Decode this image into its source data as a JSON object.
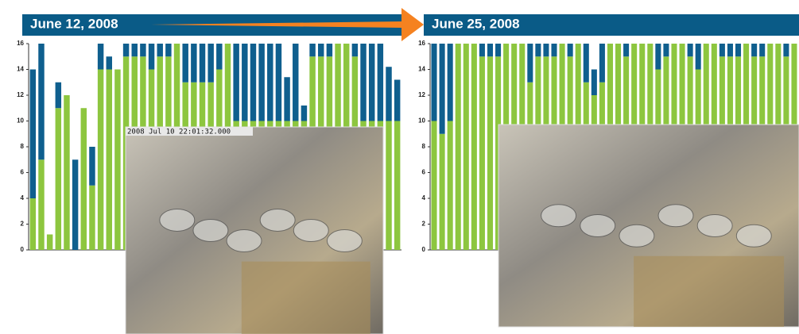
{
  "chart_data": [
    {
      "type": "stacked-bar",
      "title": "June 12, 2008",
      "annotation": "2008 Jul 10  22:01:32.000",
      "ylim": [
        0,
        16
      ],
      "yticks": [
        0,
        2,
        4,
        6,
        8,
        10,
        12,
        14,
        16
      ],
      "series": [
        {
          "color": "#8dc63f",
          "values": [
            4,
            7,
            1.2,
            11,
            12,
            0,
            11,
            5,
            14,
            14,
            14,
            15,
            15,
            15,
            14,
            15,
            15,
            16,
            13,
            13,
            13,
            13,
            14,
            16,
            10,
            10,
            10,
            10,
            10,
            10,
            10,
            10,
            10,
            15,
            15,
            15,
            16,
            16,
            15,
            10,
            10,
            10,
            10,
            10
          ]
        },
        {
          "color": "#0f5f8e",
          "values": [
            10,
            9,
            0,
            2,
            0,
            7,
            0,
            3,
            2,
            1,
            0,
            1,
            1,
            1,
            2,
            1,
            1,
            0,
            3,
            3,
            3,
            3,
            2,
            0,
            6,
            6,
            6,
            6,
            6,
            6,
            3.4,
            6,
            1.2,
            1,
            1,
            1,
            0,
            0,
            1,
            6,
            6,
            6,
            4.2,
            3.2
          ]
        }
      ]
    },
    {
      "type": "stacked-bar",
      "title": "June 25, 2008",
      "ylim": [
        0,
        16
      ],
      "yticks": [
        0,
        2,
        4,
        6,
        8,
        10,
        12,
        14,
        16
      ],
      "series": [
        {
          "color": "#8dc63f",
          "values": [
            10,
            9,
            10,
            16,
            16,
            16,
            15,
            15,
            15,
            16,
            16,
            16,
            13,
            15,
            15,
            15,
            16,
            15,
            16,
            13,
            12,
            13,
            16,
            16,
            15,
            16,
            16,
            16,
            14,
            15,
            16,
            16,
            15,
            14,
            16,
            16,
            15,
            15,
            15,
            16,
            15,
            15,
            16,
            16,
            15,
            16
          ]
        },
        {
          "color": "#0f5f8e",
          "values": [
            6,
            7,
            6,
            0,
            0,
            0,
            1,
            1,
            1,
            0,
            0,
            0,
            3,
            1,
            1,
            1,
            0,
            1,
            0,
            3,
            2,
            3,
            0,
            0,
            1,
            0,
            0,
            0,
            2,
            1,
            0,
            0,
            1,
            2,
            0,
            0,
            1,
            1,
            1,
            0,
            1,
            1,
            0,
            0,
            1,
            0
          ]
        }
      ]
    }
  ]
}
